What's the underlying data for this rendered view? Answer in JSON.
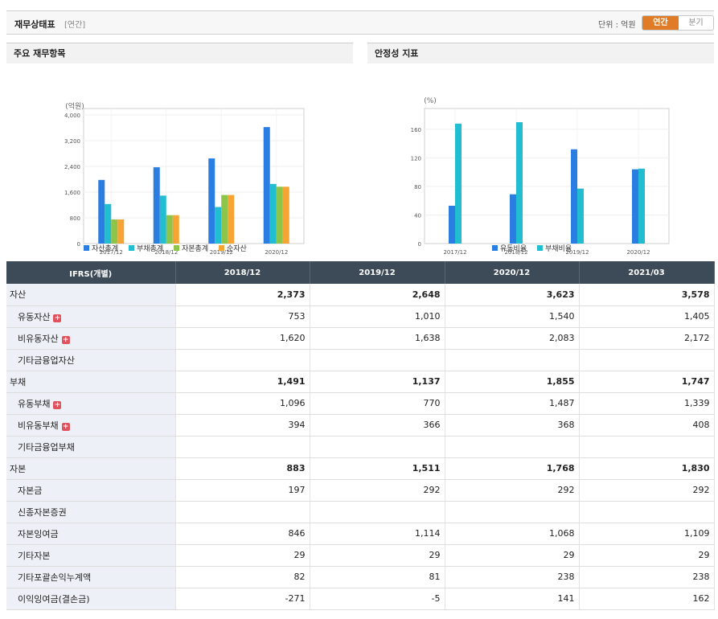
{
  "header": {
    "title": "재무상태표",
    "subtitle": "[연간]",
    "unit": "단위 : 억원",
    "annual": "연간",
    "quarter": "분기"
  },
  "charts": {
    "left_title": "주요 재무항목",
    "right_title": "안정성 지표"
  },
  "chart_data": [
    {
      "type": "bar",
      "ylabel": "(억원)",
      "categories": [
        "2017/12",
        "2018/12",
        "2019/12",
        "2020/12"
      ],
      "yticks": [
        "0",
        "800",
        "1,600",
        "2,400",
        "3,200",
        "4,000"
      ],
      "ylim": [
        0,
        4000
      ],
      "legend_position": "bottom",
      "series": [
        {
          "name": "자산총계",
          "color": "#2a7de1",
          "values": [
            1980,
            2373,
            2648,
            3623
          ]
        },
        {
          "name": "부채총계",
          "color": "#22bdd0",
          "values": [
            1230,
            1491,
            1137,
            1855
          ]
        },
        {
          "name": "자본총계",
          "color": "#8cc54a",
          "values": [
            750,
            883,
            1511,
            1768
          ]
        },
        {
          "name": "순자산",
          "color": "#f6a434",
          "values": [
            750,
            883,
            1511,
            1768
          ]
        }
      ]
    },
    {
      "type": "bar",
      "ylabel": "(%)",
      "categories": [
        "2017/12",
        "2018/12",
        "2019/12",
        "2020/12"
      ],
      "yticks": [
        "0",
        "40",
        "80",
        "120",
        "160"
      ],
      "ylim": [
        0,
        188
      ],
      "legend_position": "bottom",
      "series": [
        {
          "name": "유동비율",
          "color": "#2a7de1",
          "values": [
            53,
            69,
            132,
            104
          ]
        },
        {
          "name": "부채비율",
          "color": "#22bdd0",
          "values": [
            168,
            170,
            77,
            105
          ]
        }
      ]
    }
  ],
  "table": {
    "corner": "IFRS(개별)",
    "columns": [
      "2018/12",
      "2019/12",
      "2020/12",
      "2021/03"
    ],
    "rows": [
      {
        "label": "자산",
        "level": "main",
        "plus": false,
        "values": [
          "2,373",
          "2,648",
          "3,623",
          "3,578"
        ]
      },
      {
        "label": "유동자산",
        "level": "sub",
        "plus": true,
        "values": [
          "753",
          "1,010",
          "1,540",
          "1,405"
        ]
      },
      {
        "label": "비유동자산",
        "level": "sub",
        "plus": true,
        "values": [
          "1,620",
          "1,638",
          "2,083",
          "2,172"
        ]
      },
      {
        "label": "기타금융업자산",
        "level": "sub",
        "plus": false,
        "values": [
          "",
          "",
          "",
          ""
        ]
      },
      {
        "label": "부채",
        "level": "main",
        "plus": false,
        "values": [
          "1,491",
          "1,137",
          "1,855",
          "1,747"
        ]
      },
      {
        "label": "유동부채",
        "level": "sub",
        "plus": true,
        "values": [
          "1,096",
          "770",
          "1,487",
          "1,339"
        ]
      },
      {
        "label": "비유동부채",
        "level": "sub",
        "plus": true,
        "values": [
          "394",
          "366",
          "368",
          "408"
        ]
      },
      {
        "label": "기타금융업부채",
        "level": "sub",
        "plus": false,
        "values": [
          "",
          "",
          "",
          ""
        ]
      },
      {
        "label": "자본",
        "level": "main",
        "plus": false,
        "values": [
          "883",
          "1,511",
          "1,768",
          "1,830"
        ]
      },
      {
        "label": "자본금",
        "level": "sub",
        "plus": false,
        "values": [
          "197",
          "292",
          "292",
          "292"
        ]
      },
      {
        "label": "신종자본증권",
        "level": "sub",
        "plus": false,
        "values": [
          "",
          "",
          "",
          ""
        ]
      },
      {
        "label": "자본잉여금",
        "level": "sub",
        "plus": false,
        "values": [
          "846",
          "1,114",
          "1,068",
          "1,109"
        ]
      },
      {
        "label": "기타자본",
        "level": "sub",
        "plus": false,
        "values": [
          "29",
          "29",
          "29",
          "29"
        ]
      },
      {
        "label": "기타포괄손익누계액",
        "level": "sub",
        "plus": false,
        "values": [
          "82",
          "81",
          "238",
          "238"
        ]
      },
      {
        "label": "이익잉여금(결손금)",
        "level": "sub",
        "plus": false,
        "values": [
          "-271",
          "-5",
          "141",
          "162"
        ]
      }
    ]
  }
}
